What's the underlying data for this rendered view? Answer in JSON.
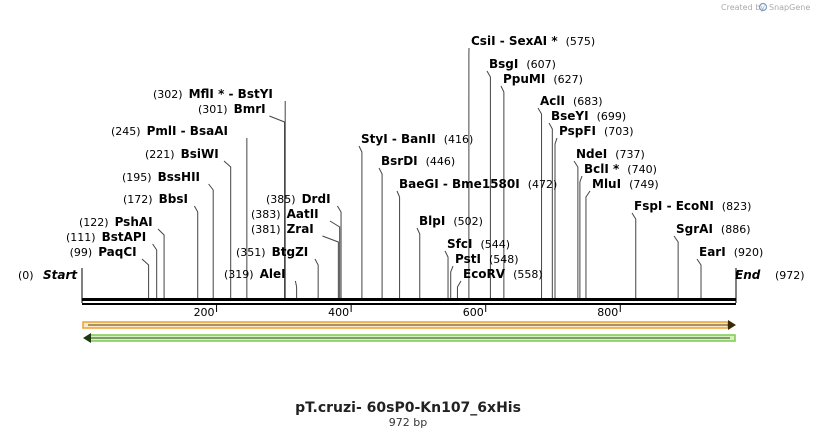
{
  "credit": {
    "prefix": "Created by",
    "brand": "SnapGene"
  },
  "sequence": {
    "name": "pT.cruzi- 60sP0-Kn107_6xHis",
    "length_label": "972 bp",
    "length": 972,
    "start_label": "Start",
    "start_pos": "(0)",
    "end_label": "End",
    "end_pos": "(972)"
  },
  "ticks": [
    "200",
    "400",
    "600",
    "800"
  ],
  "tick_values": [
    200,
    400,
    600,
    800
  ],
  "sites": [
    {
      "pos": 99,
      "pos_label": "(99)",
      "labels": [
        "PaqCI"
      ]
    },
    {
      "pos": 111,
      "pos_label": "(111)",
      "labels": [
        "BstAPI"
      ]
    },
    {
      "pos": 122,
      "pos_label": "(122)",
      "labels": [
        "PshAI"
      ]
    },
    {
      "pos": 172,
      "pos_label": "(172)",
      "labels": [
        "BbsI"
      ]
    },
    {
      "pos": 195,
      "pos_label": "(195)",
      "labels": [
        "BssHII"
      ]
    },
    {
      "pos": 221,
      "pos_label": "(221)",
      "labels": [
        "BsiWI"
      ]
    },
    {
      "pos": 245,
      "pos_label": "(245)",
      "labels": [
        "PmlI",
        "BsaAI"
      ]
    },
    {
      "pos": 301,
      "pos_label": "(301)",
      "labels": [
        "BmrI"
      ]
    },
    {
      "pos": 302,
      "pos_label": "(302)",
      "labels": [
        "MflI *",
        "BstYI"
      ]
    },
    {
      "pos": 319,
      "pos_label": "(319)",
      "labels": [
        "AleI"
      ]
    },
    {
      "pos": 351,
      "pos_label": "(351)",
      "labels": [
        "BtgZI"
      ]
    },
    {
      "pos": 381,
      "pos_label": "(381)",
      "labels": [
        "ZraI"
      ]
    },
    {
      "pos": 383,
      "pos_label": "(383)",
      "labels": [
        "AatII"
      ]
    },
    {
      "pos": 385,
      "pos_label": "(385)",
      "labels": [
        "DrdI"
      ]
    },
    {
      "pos": 416,
      "pos_label": "(416)",
      "labels": [
        "StyI",
        "BanII"
      ]
    },
    {
      "pos": 446,
      "pos_label": "(446)",
      "labels": [
        "BsrDI"
      ]
    },
    {
      "pos": 472,
      "pos_label": "(472)",
      "labels": [
        "BaeGI",
        "Bme1580I"
      ]
    },
    {
      "pos": 502,
      "pos_label": "(502)",
      "labels": [
        "BlpI"
      ]
    },
    {
      "pos": 544,
      "pos_label": "(544)",
      "labels": [
        "SfcI"
      ]
    },
    {
      "pos": 548,
      "pos_label": "(548)",
      "labels": [
        "PstI"
      ]
    },
    {
      "pos": 558,
      "pos_label": "(558)",
      "labels": [
        "EcoRV"
      ]
    },
    {
      "pos": 575,
      "pos_label": "(575)",
      "labels": [
        "CsiI",
        "SexAI *"
      ]
    },
    {
      "pos": 607,
      "pos_label": "(607)",
      "labels": [
        "BsgI"
      ]
    },
    {
      "pos": 627,
      "pos_label": "(627)",
      "labels": [
        "PpuMI"
      ]
    },
    {
      "pos": 683,
      "pos_label": "(683)",
      "labels": [
        "AclI"
      ]
    },
    {
      "pos": 699,
      "pos_label": "(699)",
      "labels": [
        "BseYI"
      ]
    },
    {
      "pos": 703,
      "pos_label": "(703)",
      "labels": [
        "PspFI"
      ]
    },
    {
      "pos": 737,
      "pos_label": "(737)",
      "labels": [
        "NdeI"
      ]
    },
    {
      "pos": 740,
      "pos_label": "(740)",
      "labels": [
        "BclI *"
      ]
    },
    {
      "pos": 749,
      "pos_label": "(749)",
      "labels": [
        "MluI"
      ]
    },
    {
      "pos": 823,
      "pos_label": "(823)",
      "labels": [
        "FspI",
        "EcoNI"
      ]
    },
    {
      "pos": 886,
      "pos_label": "(886)",
      "labels": [
        "SgrAI"
      ]
    },
    {
      "pos": 920,
      "pos_label": "(920)",
      "labels": [
        "EarI"
      ]
    }
  ],
  "features": [
    {
      "name": "orange-feature-arrow",
      "direction": "forward",
      "color": "#f0a030",
      "fill": "#fbe8c8"
    },
    {
      "name": "green-feature-arrow",
      "direction": "reverse",
      "color": "#7ec850",
      "fill": "#d8f0c0"
    }
  ],
  "colors": {
    "backbone": "#000000",
    "brand": "#7a9cc6"
  }
}
